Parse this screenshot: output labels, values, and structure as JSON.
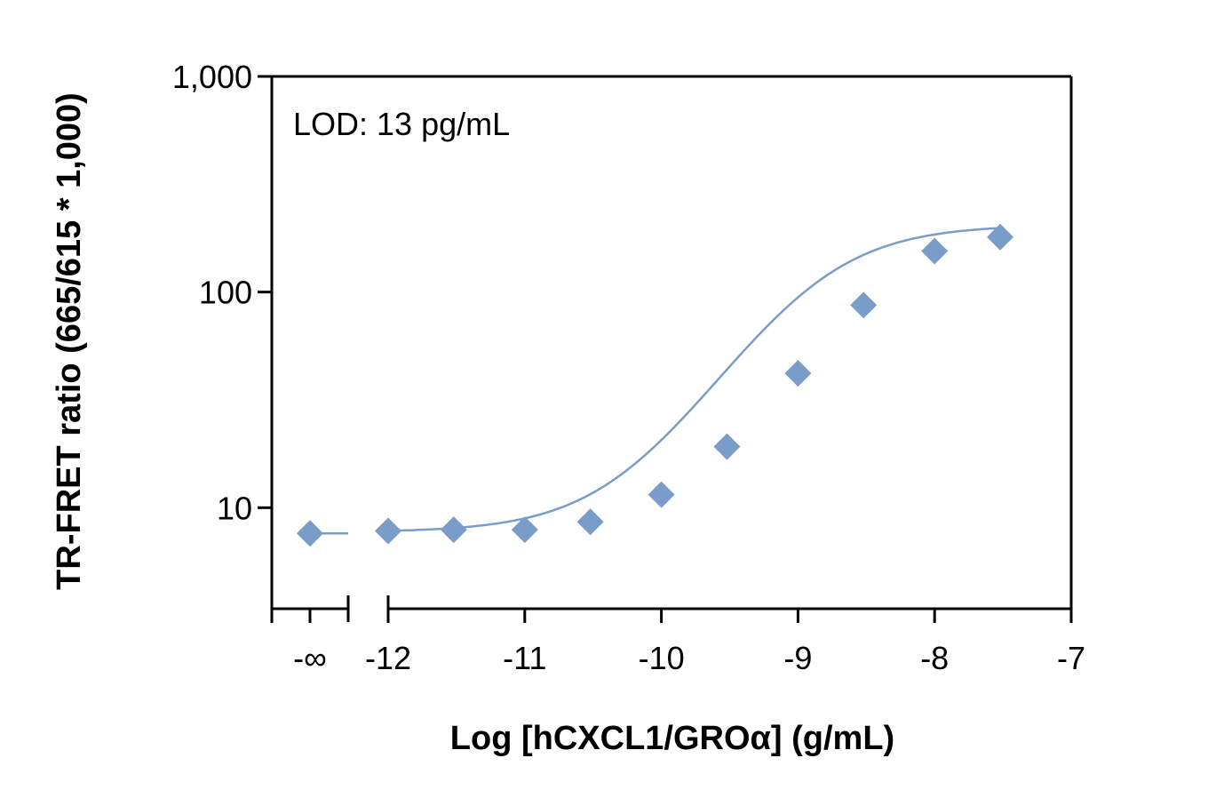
{
  "chart_data": {
    "type": "scatter",
    "title": "",
    "xlabel": "Log [hCXCL1/GROα] (g/mL)",
    "ylabel": "TR-FRET ratio (665/615 * 1,000)",
    "annotation": "LOD: 13 pg/mL",
    "y_scale": "log",
    "ylim": [
      3.4,
      1000
    ],
    "xlim": [
      -12.85,
      -7
    ],
    "x_break_label": "-∞",
    "x_ticks": [
      {
        "value": -12,
        "label": "-12"
      },
      {
        "value": -11,
        "label": "-11"
      },
      {
        "value": -10,
        "label": "-10"
      },
      {
        "value": -9,
        "label": "-9"
      },
      {
        "value": -8,
        "label": "-8"
      },
      {
        "value": -7,
        "label": "-7"
      }
    ],
    "y_ticks": [
      {
        "value": 10,
        "label": "10"
      },
      {
        "value": 100,
        "label": "100"
      },
      {
        "value": 1000,
        "label": "1,000"
      }
    ],
    "grid": false,
    "marker_color": "#7a9cc8",
    "line_color": "#7a9cc8",
    "zero_point": {
      "x": "-∞",
      "y": 7.6
    },
    "series": [
      {
        "x": [
          -12,
          -11.52,
          -11,
          -10.52,
          -10,
          -9.52,
          -9,
          -8.52,
          -8,
          -7.52
        ],
        "y": [
          7.8,
          7.9,
          7.9,
          8.6,
          11.5,
          19.2,
          42,
          87,
          155,
          180
        ]
      }
    ],
    "fit_curve": {
      "type": "4PL",
      "bottom": 7.7,
      "top": 205,
      "log_ec50": -8.9,
      "hill": 1.05
    }
  }
}
